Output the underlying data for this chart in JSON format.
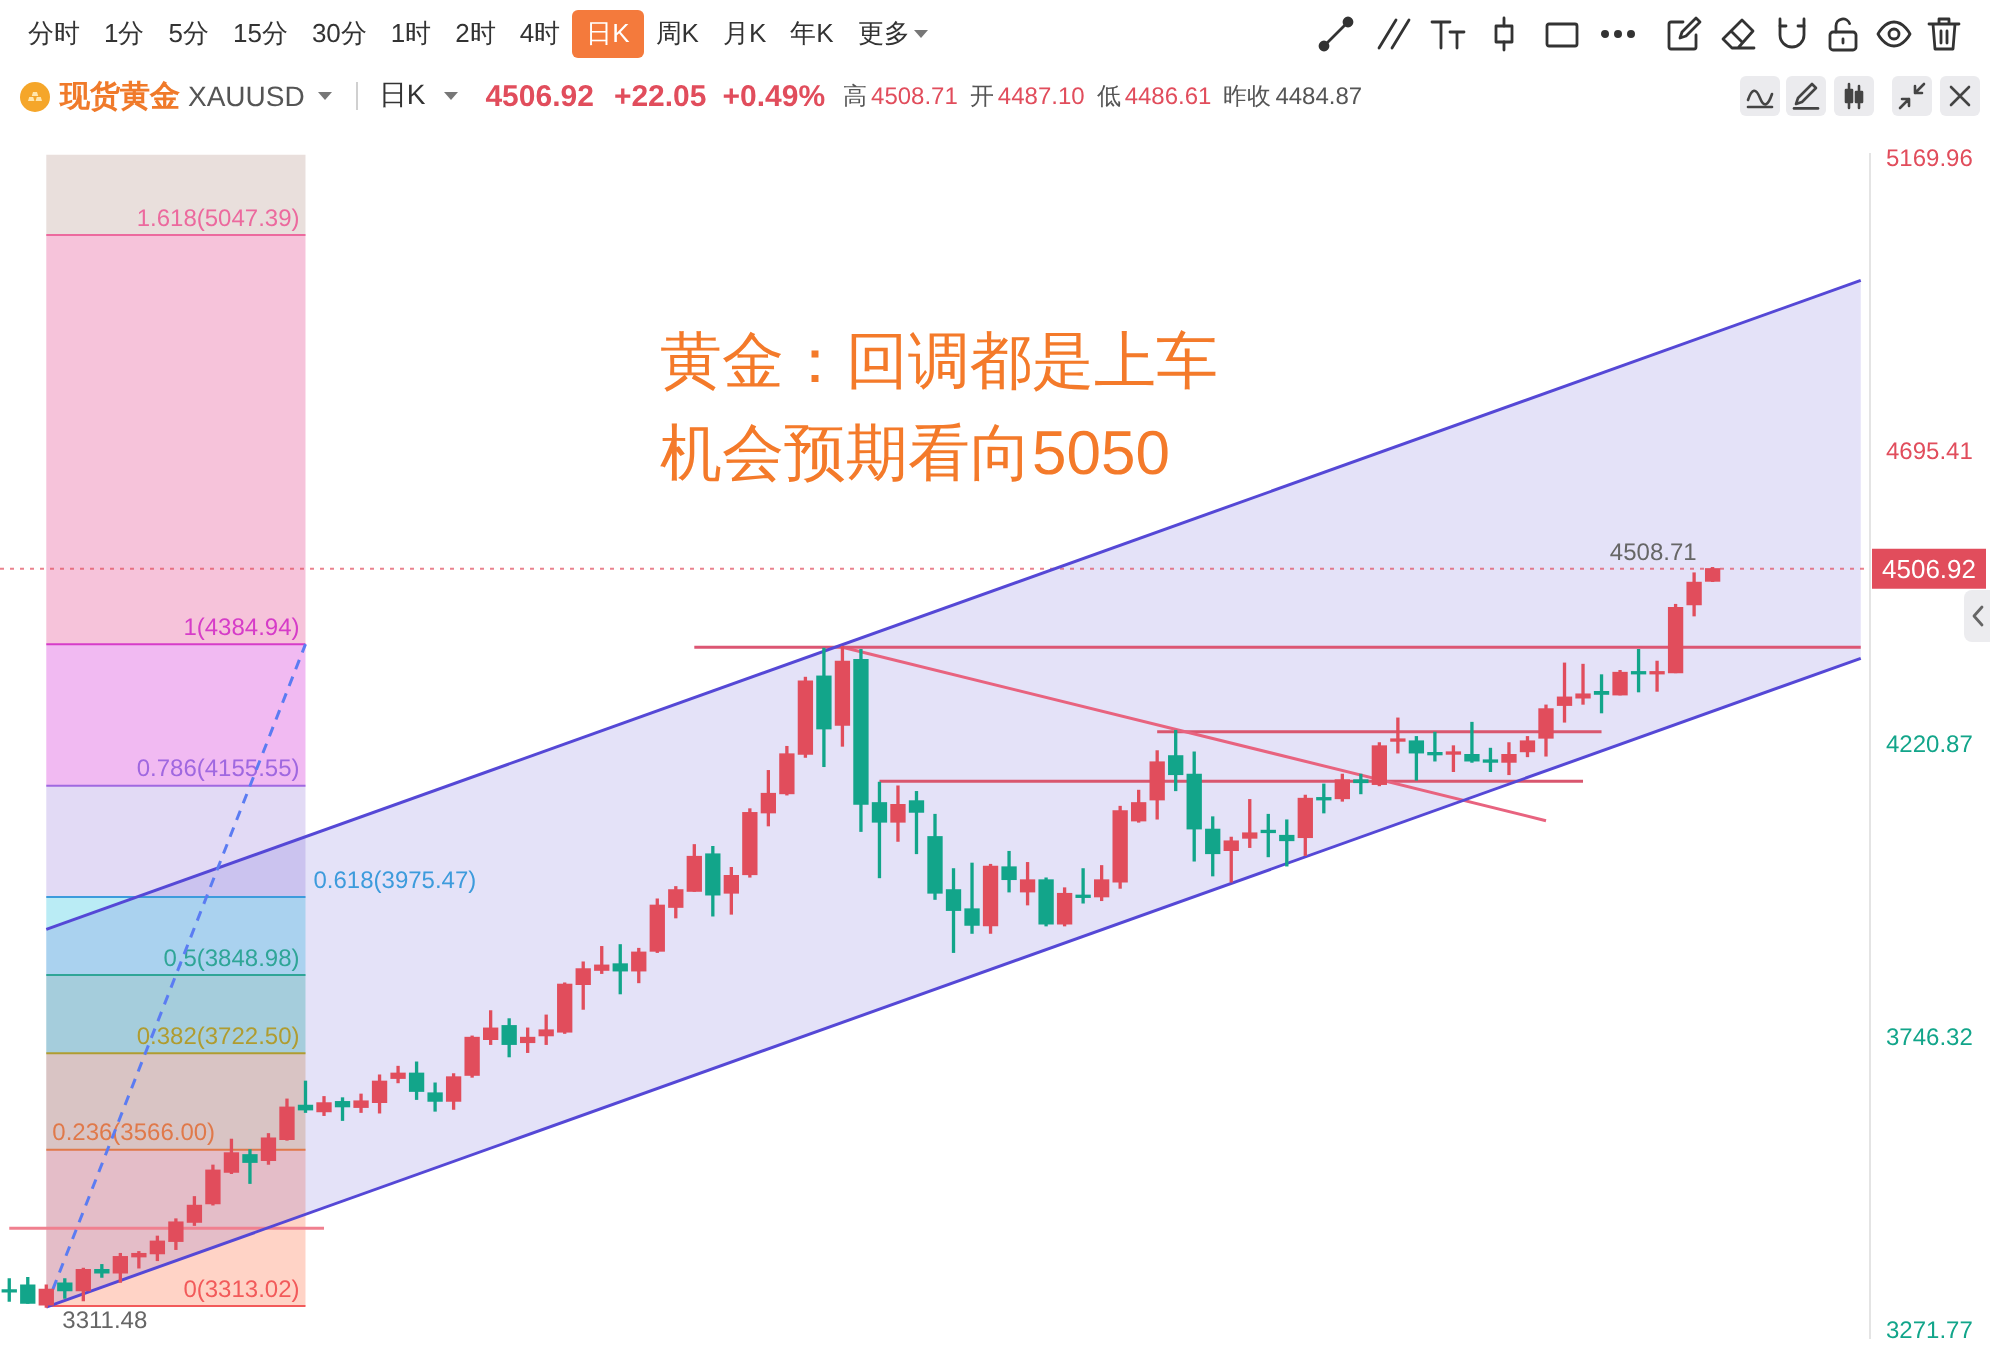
{
  "chart_data": {
    "type": "candlestick",
    "title": "黄金：回调都是上车机会预期看向5050",
    "subtitle": "现货黄金 XAUUSD",
    "categories": [
      null,
      null,
      null,
      null,
      null,
      null,
      null,
      null,
      null,
      null,
      null,
      null,
      null,
      null,
      null,
      null,
      null,
      null,
      null,
      null,
      null,
      null,
      null,
      null,
      null,
      null,
      null,
      null,
      null,
      null,
      null,
      null,
      null,
      null,
      null,
      null,
      null,
      null,
      null,
      null,
      null,
      null,
      null,
      null,
      null,
      null,
      null,
      null,
      null,
      null,
      null,
      null,
      null,
      null,
      null,
      null,
      null,
      null,
      null,
      null,
      null,
      null,
      null,
      null,
      null,
      null,
      null,
      null,
      null,
      null,
      null,
      null,
      null,
      null,
      null,
      null,
      null,
      null,
      null,
      null,
      null,
      null,
      null,
      null,
      null,
      null,
      null,
      null,
      null,
      null,
      null,
      null,
      null,
      null,
      null,
      null,
      null,
      null,
      null,
      null,
      null
    ],
    "ohlc": [
      [
        3337,
        3357,
        3321,
        3336
      ],
      [
        3347,
        3359,
        3318,
        3318
      ],
      [
        3315,
        3347,
        3311.48,
        3340
      ],
      [
        3350,
        3357,
        3326,
        3338
      ],
      [
        3338,
        3374,
        3322,
        3372
      ],
      [
        3372,
        3380,
        3360,
        3367
      ],
      [
        3367,
        3398,
        3352,
        3393
      ],
      [
        3393,
        3401,
        3375,
        3398
      ],
      [
        3398,
        3426,
        3387,
        3418
      ],
      [
        3418,
        3454,
        3405,
        3449
      ],
      [
        3449,
        3490,
        3444,
        3476
      ],
      [
        3479,
        3541,
        3477,
        3533
      ],
      [
        3530,
        3583,
        3528,
        3561
      ],
      [
        3558,
        3566,
        3512,
        3546
      ],
      [
        3549,
        3592,
        3543,
        3585
      ],
      [
        3583,
        3648,
        3582,
        3635
      ],
      [
        3638,
        3677,
        3627,
        3631
      ],
      [
        3628,
        3652,
        3622,
        3642
      ],
      [
        3644,
        3650,
        3614,
        3636
      ],
      [
        3635,
        3656,
        3627,
        3645
      ],
      [
        3643,
        3687,
        3626,
        3677
      ],
      [
        3682,
        3701,
        3675,
        3690
      ],
      [
        3690,
        3708,
        3648,
        3661
      ],
      [
        3658,
        3674,
        3629,
        3645
      ],
      [
        3645,
        3689,
        3632,
        3684
      ],
      [
        3687,
        3750,
        3684,
        3748
      ],
      [
        3745,
        3791,
        3737,
        3763
      ],
      [
        3767,
        3778,
        3717,
        3737
      ],
      [
        3740,
        3763,
        3724,
        3748
      ],
      [
        3751,
        3784,
        3737,
        3760
      ],
      [
        3757,
        3836,
        3755,
        3834
      ],
      [
        3834,
        3870,
        3794,
        3859
      ],
      [
        3857,
        3895,
        3852,
        3865
      ],
      [
        3867,
        3898,
        3819,
        3856
      ],
      [
        3856,
        3892,
        3837,
        3886
      ],
      [
        3888,
        3972,
        3886,
        3962
      ],
      [
        3959,
        3992,
        3942,
        3987
      ],
      [
        3985,
        4060,
        3985,
        4041
      ],
      [
        4045,
        4057,
        3945,
        3979
      ],
      [
        3982,
        4023,
        3948,
        4010
      ],
      [
        4012,
        4118,
        4008,
        4112
      ],
      [
        4112,
        4180,
        4091,
        4143
      ],
      [
        4143,
        4219,
        4141,
        4207
      ],
      [
        4207,
        4331,
        4202,
        4325
      ],
      [
        4333,
        4378,
        4187,
        4248
      ],
      [
        4254,
        4381,
        4220,
        4357
      ],
      [
        4360,
        4376,
        4082,
        4126
      ],
      [
        4128,
        4161,
        4007,
        4097
      ],
      [
        4097,
        4155,
        4066,
        4125
      ],
      [
        4131,
        4146,
        4046,
        4113
      ],
      [
        4073,
        4109,
        3972,
        3982
      ],
      [
        3987,
        4021,
        3886,
        3954
      ],
      [
        3956,
        4030,
        3917,
        3930
      ],
      [
        3929,
        4028,
        3917,
        4025
      ],
      [
        4024,
        4049,
        3984,
        4004
      ],
      [
        3984,
        4031,
        3963,
        4003
      ],
      [
        4003,
        4006,
        3929,
        3932
      ],
      [
        3932,
        3990,
        3929,
        3981
      ],
      [
        3978,
        4021,
        3966,
        3975
      ],
      [
        3976,
        4026,
        3970,
        4003
      ],
      [
        4000,
        4122,
        3990,
        4115
      ],
      [
        4099,
        4148,
        4097,
        4128
      ],
      [
        4133,
        4212,
        4102,
        4194
      ],
      [
        4204,
        4245,
        4148,
        4174
      ],
      [
        4174,
        4210,
        4034,
        4086
      ],
      [
        4085,
        4105,
        4010,
        4046
      ],
      [
        4051,
        4072,
        4000,
        4066
      ],
      [
        4071,
        4133,
        4056,
        4079
      ],
      [
        4082,
        4109,
        4041,
        4080
      ],
      [
        4075,
        4100,
        4026,
        4067
      ],
      [
        4072,
        4140,
        4043,
        4135
      ],
      [
        4135,
        4158,
        4112,
        4133
      ],
      [
        4135,
        4174,
        4131,
        4165
      ],
      [
        4165,
        4174,
        4143,
        4161
      ],
      [
        4158,
        4225,
        4156,
        4220
      ],
      [
        4228,
        4265,
        4209,
        4230
      ],
      [
        4228,
        4235,
        4165,
        4209
      ],
      [
        4209,
        4242,
        4196,
        4206
      ],
      [
        4207,
        4220,
        4179,
        4209
      ],
      [
        4206,
        4258,
        4194,
        4196
      ],
      [
        4197,
        4216,
        4179,
        4194
      ],
      [
        4194,
        4225,
        4174,
        4206
      ],
      [
        4211,
        4235,
        4203,
        4228
      ],
      [
        4233,
        4286,
        4204,
        4280
      ],
      [
        4286,
        4354,
        4259,
        4299
      ],
      [
        4298,
        4352,
        4288,
        4304
      ],
      [
        4308,
        4335,
        4274,
        4304
      ],
      [
        4303,
        4342,
        4303,
        4339
      ],
      [
        4339,
        4376,
        4308,
        4337
      ],
      [
        4337,
        4357,
        4309,
        4339
      ],
      [
        4339,
        4449,
        4339,
        4444
      ],
      [
        4449,
        4500,
        4431,
        4484.87
      ],
      [
        4487.1,
        4508.71,
        4486.61,
        4506.92
      ],
      null,
      null,
      null,
      null,
      null,
      null,
      null,
      null
    ],
    "colors": [
      "#12a58a",
      "#12a58a",
      "#e14d5c",
      "#12a58a",
      "#e14d5c",
      "#12a58a",
      "#e14d5c",
      "#e14d5c",
      "#e14d5c",
      "#e14d5c",
      "#e14d5c",
      "#e14d5c",
      "#e14d5c",
      "#12a58a",
      "#e14d5c",
      "#e14d5c",
      "#12a58a",
      "#e14d5c",
      "#12a58a",
      "#e14d5c",
      "#e14d5c",
      "#e14d5c",
      "#12a58a",
      "#12a58a",
      "#e14d5c",
      "#e14d5c",
      "#e14d5c",
      "#12a58a",
      "#e14d5c",
      "#e14d5c",
      "#e14d5c",
      "#e14d5c",
      "#e14d5c",
      "#12a58a",
      "#e14d5c",
      "#e14d5c",
      "#e14d5c",
      "#e14d5c",
      "#12a58a",
      "#e14d5c",
      "#e14d5c",
      "#e14d5c",
      "#e14d5c",
      "#e14d5c",
      "#12a58a",
      "#e14d5c",
      "#12a58a",
      "#12a58a",
      "#e14d5c",
      "#12a58a",
      "#12a58a",
      "#12a58a",
      "#12a58a",
      "#e14d5c",
      "#12a58a",
      "#e14d5c",
      "#12a58a",
      "#e14d5c",
      "#12a58a",
      "#e14d5c",
      "#e14d5c",
      "#e14d5c",
      "#e14d5c",
      "#12a58a",
      "#12a58a",
      "#12a58a",
      "#e14d5c",
      "#e14d5c",
      "#12a58a",
      "#12a58a",
      "#e14d5c",
      "#12a58a",
      "#e14d5c",
      "#12a58a",
      "#e14d5c",
      "#e14d5c",
      "#12a58a",
      "#12a58a",
      "#e14d5c",
      "#12a58a",
      "#12a58a",
      "#e14d5c",
      "#e14d5c",
      "#e14d5c",
      "#e14d5c",
      "#e14d5c",
      "#12a58a",
      "#e14d5c",
      "#12a58a",
      "#e14d5c",
      "#e14d5c",
      "#e14d5c",
      "#e14d5c",
      null,
      null,
      null,
      null,
      null,
      null,
      null,
      null
    ],
    "series": [
      {
        "type": "line",
        "color": "#5b7cf2",
        "line_style": "dashed",
        "values": [
          null,
          null,
          3313.02,
          null,
          null,
          null,
          null,
          null,
          null,
          null,
          null,
          null,
          null,
          null,
          null,
          null,
          4384.94,
          null,
          null,
          null,
          null,
          null,
          null,
          null,
          null,
          null,
          null,
          null,
          null,
          null,
          null,
          null,
          null,
          null,
          null,
          null,
          null,
          null,
          null,
          null,
          null,
          null,
          null,
          null,
          null,
          null,
          null,
          null,
          null,
          null,
          null,
          null,
          null,
          null,
          null,
          null,
          null,
          null,
          null,
          null,
          null,
          null,
          null,
          null,
          null,
          null,
          null,
          null,
          null,
          null,
          null,
          null,
          null,
          null,
          null,
          null,
          null,
          null,
          null,
          null,
          null,
          null,
          null,
          null,
          null,
          null,
          null,
          null,
          null,
          null,
          null,
          null,
          null,
          null,
          null,
          null,
          null,
          null,
          null,
          null,
          null
        ]
      },
      {
        "type": "line",
        "color": "#5548d6",
        "values": [
          null,
          null,
          3923,
          null,
          null,
          null,
          null,
          null,
          null,
          null,
          null,
          null,
          null,
          null,
          null,
          null,
          null,
          null,
          null,
          null,
          null,
          null,
          null,
          null,
          null,
          null,
          null,
          null,
          null,
          null,
          null,
          null,
          null,
          null,
          null,
          null,
          null,
          null,
          null,
          null,
          null,
          null,
          null,
          null,
          null,
          null,
          null,
          null,
          null,
          null,
          null,
          null,
          null,
          null,
          null,
          null,
          null,
          null,
          null,
          null,
          null,
          null,
          null,
          null,
          null,
          null,
          null,
          null,
          null,
          null,
          null,
          null,
          null,
          null,
          null,
          null,
          null,
          null,
          null,
          null,
          null,
          null,
          null,
          null,
          null,
          null,
          null,
          null,
          null,
          null,
          null,
          null,
          null,
          null,
          null,
          null,
          null,
          null,
          null,
          null,
          4974
        ],
        "lower": [
          null,
          null,
          3311.48,
          null,
          null,
          null,
          null,
          null,
          null,
          null,
          null,
          null,
          null,
          null,
          null,
          null,
          null,
          null,
          null,
          null,
          null,
          null,
          null,
          null,
          null,
          null,
          null,
          null,
          null,
          null,
          null,
          null,
          null,
          null,
          null,
          null,
          null,
          null,
          null,
          null,
          null,
          null,
          null,
          null,
          null,
          null,
          null,
          null,
          null,
          null,
          null,
          null,
          null,
          null,
          null,
          null,
          null,
          null,
          null,
          null,
          null,
          null,
          null,
          null,
          null,
          null,
          null,
          null,
          null,
          null,
          null,
          null,
          null,
          null,
          null,
          null,
          null,
          null,
          null,
          null,
          null,
          null,
          null,
          null,
          null,
          null,
          null,
          null,
          null,
          null,
          null,
          null,
          null,
          null,
          null,
          null,
          null,
          null,
          null,
          null,
          4362
        ],
        "upper": [
          null,
          null,
          3923,
          null,
          null,
          null,
          null,
          null,
          null,
          null,
          null,
          null,
          null,
          null,
          null,
          null,
          null,
          null,
          null,
          null,
          null,
          null,
          null,
          null,
          null,
          null,
          null,
          null,
          null,
          null,
          null,
          null,
          null,
          null,
          null,
          null,
          null,
          null,
          null,
          null,
          null,
          null,
          null,
          null,
          null,
          null,
          null,
          null,
          null,
          null,
          null,
          null,
          null,
          null,
          null,
          null,
          null,
          null,
          null,
          null,
          null,
          null,
          null,
          null,
          null,
          null,
          null,
          null,
          null,
          null,
          null,
          null,
          null,
          null,
          null,
          null,
          null,
          null,
          null,
          null,
          null,
          null,
          null,
          null,
          null,
          null,
          null,
          null,
          null,
          null,
          null,
          null,
          null,
          null,
          null,
          null,
          null,
          null,
          null,
          null,
          4974
        ]
      },
      {
        "type": "line",
        "color": "#5548d6",
        "values": [
          null,
          null,
          3311.48,
          null,
          null,
          null,
          null,
          null,
          null,
          null,
          null,
          null,
          null,
          null,
          null,
          null,
          null,
          null,
          null,
          null,
          null,
          null,
          null,
          null,
          null,
          null,
          null,
          null,
          null,
          null,
          null,
          null,
          null,
          null,
          null,
          null,
          null,
          null,
          null,
          null,
          null,
          null,
          null,
          null,
          null,
          null,
          null,
          null,
          null,
          null,
          null,
          null,
          null,
          null,
          null,
          null,
          null,
          null,
          null,
          null,
          null,
          null,
          null,
          null,
          null,
          null,
          null,
          null,
          null,
          null,
          null,
          null,
          null,
          null,
          null,
          null,
          null,
          null,
          null,
          null,
          null,
          null,
          null,
          null,
          null,
          null,
          null,
          null,
          null,
          null,
          null,
          null,
          null,
          null,
          null,
          null,
          null,
          null,
          null,
          null,
          4362
        ]
      },
      {
        "type": "line",
        "color": "#dc5673",
        "values": [
          null,
          null,
          null,
          null,
          null,
          null,
          null,
          null,
          null,
          null,
          null,
          null,
          null,
          null,
          null,
          null,
          null,
          null,
          null,
          null,
          null,
          null,
          null,
          null,
          null,
          null,
          null,
          null,
          null,
          null,
          null,
          null,
          null,
          null,
          null,
          null,
          null,
          4380,
          null,
          null,
          null,
          null,
          null,
          null,
          null,
          null,
          null,
          null,
          null,
          null,
          null,
          null,
          null,
          null,
          null,
          null,
          null,
          null,
          null,
          null,
          null,
          null,
          null,
          null,
          null,
          null,
          null,
          null,
          null,
          null,
          null,
          null,
          null,
          null,
          null,
          null,
          null,
          null,
          null,
          null,
          null,
          null,
          null,
          null,
          null,
          null,
          null,
          null,
          null,
          null,
          null,
          null,
          null,
          null,
          null,
          null,
          null,
          null,
          null,
          null,
          4380
        ]
      },
      {
        "type": "line",
        "color": "#e8637f",
        "values": [
          null,
          null,
          null,
          null,
          null,
          null,
          null,
          null,
          null,
          null,
          null,
          null,
          null,
          null,
          null,
          null,
          null,
          null,
          null,
          null,
          null,
          null,
          null,
          null,
          null,
          null,
          null,
          null,
          null,
          null,
          null,
          null,
          null,
          null,
          null,
          null,
          null,
          null,
          null,
          null,
          null,
          null,
          null,
          null,
          null,
          4380,
          null,
          null,
          null,
          null,
          null,
          null,
          null,
          null,
          null,
          null,
          null,
          null,
          null,
          null,
          null,
          null,
          null,
          null,
          null,
          null,
          null,
          null,
          null,
          null,
          null,
          null,
          null,
          null,
          null,
          null,
          null,
          null,
          null,
          null,
          null,
          null,
          null,
          4099,
          null,
          null,
          null,
          null,
          null,
          null,
          null,
          null,
          null,
          null,
          null,
          null,
          null,
          null,
          null,
          null,
          null
        ]
      },
      {
        "type": "line",
        "color": "#d9566e",
        "values": [
          null,
          null,
          null,
          null,
          null,
          null,
          null,
          null,
          null,
          null,
          null,
          null,
          null,
          null,
          null,
          null,
          null,
          null,
          null,
          null,
          null,
          null,
          null,
          null,
          null,
          null,
          null,
          null,
          null,
          null,
          null,
          null,
          null,
          null,
          null,
          null,
          null,
          null,
          null,
          null,
          null,
          null,
          null,
          null,
          null,
          null,
          null,
          4163,
          null,
          null,
          null,
          null,
          null,
          null,
          null,
          null,
          null,
          null,
          null,
          null,
          null,
          null,
          null,
          null,
          null,
          null,
          null,
          null,
          null,
          null,
          null,
          null,
          null,
          null,
          null,
          null,
          null,
          null,
          null,
          null,
          null,
          null,
          null,
          null,
          null,
          4163,
          null,
          null,
          null,
          null,
          null,
          null,
          null,
          null,
          null,
          null,
          null,
          null,
          null,
          null,
          null
        ]
      },
      {
        "type": "line",
        "color": "#d9566e",
        "values": [
          null,
          null,
          null,
          null,
          null,
          null,
          null,
          null,
          null,
          null,
          null,
          null,
          null,
          null,
          null,
          null,
          null,
          null,
          null,
          null,
          null,
          null,
          null,
          null,
          null,
          null,
          null,
          null,
          null,
          null,
          null,
          null,
          null,
          null,
          null,
          null,
          null,
          null,
          null,
          null,
          null,
          null,
          null,
          null,
          null,
          null,
          null,
          null,
          null,
          null,
          null,
          null,
          null,
          null,
          null,
          null,
          null,
          null,
          null,
          null,
          null,
          null,
          4243,
          null,
          null,
          null,
          null,
          null,
          null,
          null,
          null,
          null,
          null,
          null,
          null,
          null,
          null,
          null,
          null,
          null,
          null,
          null,
          null,
          null,
          null,
          null,
          4243,
          null,
          null,
          null,
          null,
          null,
          null,
          null,
          null,
          null,
          null,
          null,
          null,
          null,
          null
        ]
      },
      {
        "type": "line",
        "color": "#f0808f",
        "values": [
          3439,
          null,
          null,
          null,
          null,
          null,
          null,
          null,
          null,
          null,
          null,
          null,
          null,
          null,
          null,
          null,
          null,
          3439,
          null,
          null,
          null,
          null,
          null,
          null,
          null,
          null,
          null,
          null,
          null,
          null,
          null,
          null,
          null,
          null,
          null,
          null,
          null,
          null,
          null,
          null,
          null,
          null,
          null,
          null,
          null,
          null,
          null,
          null,
          null,
          null,
          null,
          null,
          null,
          null,
          null,
          null,
          null,
          null,
          null,
          null,
          null,
          null,
          null,
          null,
          null,
          null,
          null,
          null,
          null,
          null,
          null,
          null,
          null,
          null,
          null,
          null,
          null,
          null,
          null,
          null,
          null,
          null,
          null,
          null,
          null,
          null,
          null,
          null,
          null,
          null,
          null,
          null,
          null,
          null,
          null,
          null,
          null,
          null,
          null,
          null,
          null
        ]
      }
    ],
    "ylim": [
      3262,
      5178
    ],
    "yticks": [
      3271.77,
      3746.32,
      4220.87,
      4695.41,
      5169.96
    ],
    "tick_labels": "y",
    "bands": [
      {
        "axis": "y",
        "from": 5047.39,
        "to": 5178,
        "color": "#e9dfdc"
      },
      {
        "axis": "y",
        "from": 4384.94,
        "to": 5047.39,
        "color": "#f6c3da"
      },
      {
        "axis": "y",
        "from": 4155.55,
        "to": 4384.94,
        "color": "#f1baf2"
      },
      {
        "axis": "y",
        "from": 3975.47,
        "to": 4155.55,
        "color": "#e2daf5"
      },
      {
        "axis": "y",
        "from": 3848.98,
        "to": 3975.47,
        "color": "#baecf5"
      },
      {
        "axis": "y",
        "from": 3722.5,
        "to": 3848.98,
        "color": "#b4e6de"
      },
      {
        "axis": "y",
        "from": 3566,
        "to": 3722.5,
        "color": "#f2dcc2"
      },
      {
        "axis": "y",
        "from": 3313.02,
        "to": 3566,
        "color": "#ffd3c6"
      }
    ],
    "ref_lines": [
      {
        "axis": "y",
        "value": 5047.39,
        "label": "1.618(5047.39)",
        "color": "#ec6a9e"
      },
      {
        "axis": "y",
        "value": 4384.94,
        "label": "1(4384.94)",
        "color": "#d63cc8"
      },
      {
        "axis": "y",
        "value": 4155.55,
        "label": "0.786(4155.55)",
        "color": "#a068e0"
      },
      {
        "axis": "y",
        "value": 3975.47,
        "label": "0.618(3975.47)",
        "color": "#3d9bdc"
      },
      {
        "axis": "y",
        "value": 3848.98,
        "label": "0.5(3848.98)",
        "color": "#2fa597"
      },
      {
        "axis": "y",
        "value": 3722.5,
        "label": "0.382(3722.50)",
        "color": "#b09c30"
      },
      {
        "axis": "y",
        "value": 3566,
        "label": "0.236(3566.00)",
        "color": "#e0794a"
      },
      {
        "axis": "y",
        "value": 3313.02,
        "label": "0(3313.02)",
        "color": "#f25a5a"
      },
      {
        "axis": "y",
        "value": 4506.92,
        "label": "4506.92",
        "color": "#e14d5c",
        "line_style": "dotted"
      }
    ],
    "annotations": [
      "分时",
      "1分",
      "5分",
      "15分",
      "30分",
      "1时",
      "2时",
      "4时",
      "日K",
      "周K",
      "月K",
      "年K",
      "更多",
      "日K",
      "4506.92",
      "+22.05",
      "+0.49%",
      "高",
      "4508.71",
      "开",
      "4487.10",
      "低",
      "4486.61",
      "昨收",
      "4484.87",
      {
        "text": "4508.71",
        "y": 4508.71
      },
      {
        "text": "3311.48",
        "y": 3311.48
      }
    ]
  }
}
